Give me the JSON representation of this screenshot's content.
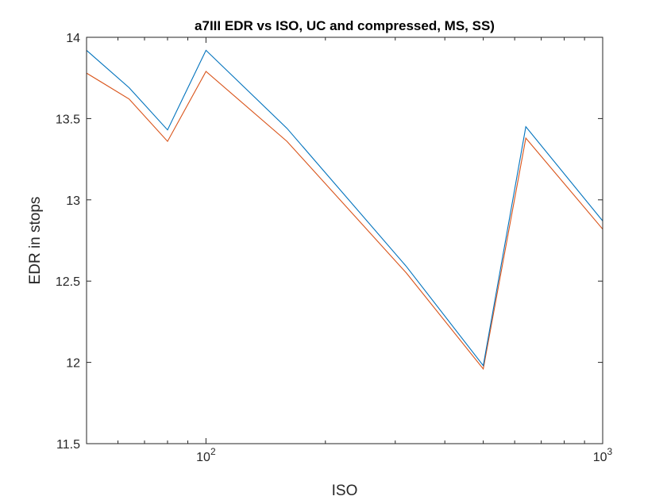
{
  "chart_data": {
    "type": "line",
    "title": "a7III EDR vs ISO, UC and compressed, MS, SS)",
    "xlabel": "ISO",
    "ylabel": "EDR in stops",
    "xscale": "log",
    "xlim": [
      50,
      1000
    ],
    "ylim": [
      11.5,
      14
    ],
    "grid": false,
    "y_ticks": [
      11.5,
      12,
      12.5,
      13,
      13.5,
      14
    ],
    "y_tick_labels": [
      "11.5",
      "12",
      "12.5",
      "13",
      "13.5",
      "14"
    ],
    "x_major_ticks": [
      {
        "value": 100,
        "base": "10",
        "exp": "2"
      },
      {
        "value": 1000,
        "base": "10",
        "exp": "3"
      }
    ],
    "x_minor_ticks": [
      60,
      70,
      80,
      90,
      200,
      300,
      400,
      500,
      600,
      700,
      800,
      900
    ],
    "series": [
      {
        "color": "#0072BD",
        "x": [
          50,
          64,
          80,
          100,
          160,
          320,
          500,
          640,
          1000
        ],
        "y": [
          13.92,
          13.69,
          13.43,
          13.92,
          13.44,
          12.59,
          11.98,
          13.45,
          12.87
        ]
      },
      {
        "color": "#D95319",
        "x": [
          50,
          64,
          80,
          100,
          160,
          320,
          500,
          640,
          1000
        ],
        "y": [
          13.78,
          13.62,
          13.36,
          13.79,
          13.36,
          12.55,
          11.96,
          13.38,
          12.82
        ]
      }
    ]
  }
}
